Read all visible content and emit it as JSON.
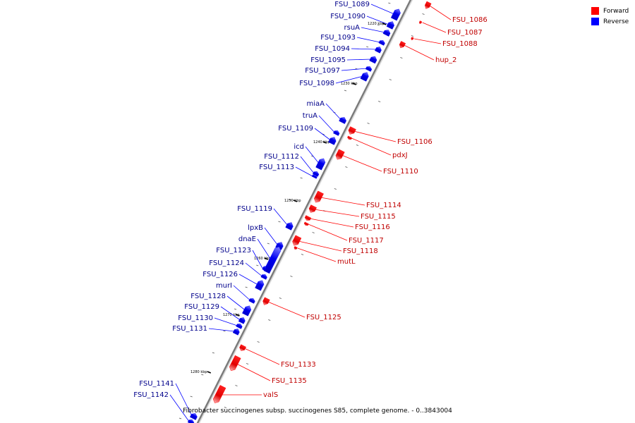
{
  "legend": {
    "forward": {
      "label": "Forward",
      "color": "#ff0000"
    },
    "reverse": {
      "label": "Reverse",
      "color": "#0000ff"
    }
  },
  "caption": "Fibrobacter succinogenes subsp. succinogenes S85, complete genome. - 0..3843004",
  "ticks": [
    "1220 kbp",
    "1230 kbp",
    "1240 kbp",
    "1250 kbp",
    "1260 kbp",
    "1270 kbp",
    "1280 kbp"
  ],
  "genes": [
    {
      "name": "FSU_1086",
      "strand": "forward"
    },
    {
      "name": "FSU_1087",
      "strand": "forward"
    },
    {
      "name": "FSU_1088",
      "strand": "forward"
    },
    {
      "name": "hup_2",
      "strand": "forward"
    },
    {
      "name": "FSU_1089",
      "strand": "reverse"
    },
    {
      "name": "FSU_1090",
      "strand": "reverse"
    },
    {
      "name": "rsuA",
      "strand": "reverse"
    },
    {
      "name": "FSU_1093",
      "strand": "reverse"
    },
    {
      "name": "FSU_1094",
      "strand": "reverse"
    },
    {
      "name": "FSU_1095",
      "strand": "reverse"
    },
    {
      "name": "FSU_1097",
      "strand": "reverse"
    },
    {
      "name": "FSU_1098",
      "strand": "reverse"
    },
    {
      "name": "miaA",
      "strand": "reverse"
    },
    {
      "name": "truA",
      "strand": "reverse"
    },
    {
      "name": "FSU_1109",
      "strand": "reverse"
    },
    {
      "name": "FSU_1106",
      "strand": "forward"
    },
    {
      "name": "pdxJ",
      "strand": "forward"
    },
    {
      "name": "FSU_1110",
      "strand": "forward"
    },
    {
      "name": "icd",
      "strand": "reverse"
    },
    {
      "name": "FSU_1112",
      "strand": "reverse"
    },
    {
      "name": "FSU_1113",
      "strand": "reverse"
    },
    {
      "name": "FSU_1114",
      "strand": "forward"
    },
    {
      "name": "FSU_1115",
      "strand": "forward"
    },
    {
      "name": "FSU_1116",
      "strand": "forward"
    },
    {
      "name": "FSU_1117",
      "strand": "forward"
    },
    {
      "name": "FSU_1118",
      "strand": "forward"
    },
    {
      "name": "mutL",
      "strand": "forward"
    },
    {
      "name": "FSU_1119",
      "strand": "reverse"
    },
    {
      "name": "lpxB",
      "strand": "reverse"
    },
    {
      "name": "dnaE",
      "strand": "reverse"
    },
    {
      "name": "FSU_1123",
      "strand": "reverse"
    },
    {
      "name": "FSU_1124",
      "strand": "reverse"
    },
    {
      "name": "FSU_1126",
      "strand": "reverse"
    },
    {
      "name": "murI",
      "strand": "reverse"
    },
    {
      "name": "FSU_1128",
      "strand": "reverse"
    },
    {
      "name": "FSU_1129",
      "strand": "reverse"
    },
    {
      "name": "FSU_1130",
      "strand": "reverse"
    },
    {
      "name": "FSU_1131",
      "strand": "reverse"
    },
    {
      "name": "FSU_1125",
      "strand": "forward"
    },
    {
      "name": "FSU_1133",
      "strand": "forward"
    },
    {
      "name": "FSU_1135",
      "strand": "forward"
    },
    {
      "name": "valS",
      "strand": "forward"
    },
    {
      "name": "FSU_1141",
      "strand": "reverse"
    },
    {
      "name": "FSU_1142",
      "strand": "reverse"
    }
  ]
}
